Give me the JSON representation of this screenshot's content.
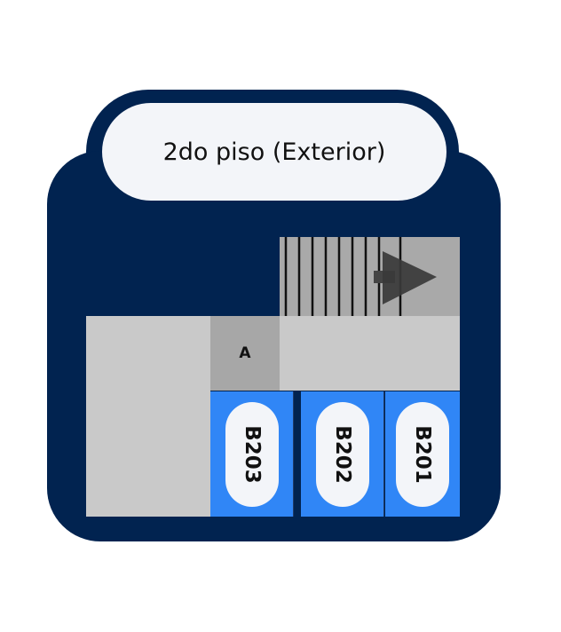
{
  "floor_title": "2do piso (Exterior)",
  "area_label": "A",
  "rooms": [
    {
      "label": "B203"
    },
    {
      "label": "B202"
    },
    {
      "label": "B201"
    }
  ],
  "colors": {
    "frame": "#012350",
    "pill": "#f3f5f9",
    "floor": "#c9c9c9",
    "area_a": "#a7a7a7",
    "stairs": "#a9a9a9",
    "room": "#3086f6"
  },
  "icons": {
    "stairs": "stairs-arrow-icon"
  }
}
